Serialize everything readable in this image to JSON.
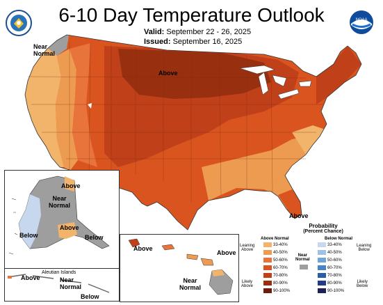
{
  "header": {
    "title": "6-10 Day Temperature Outlook",
    "valid_label": "Valid:",
    "valid_value": "September 22 - 26, 2025",
    "issued_label": "Issued:",
    "issued_value": "September 16, 2025"
  },
  "logos": {
    "left_seal": "department-of-commerce-seal",
    "right_logo": "noaa-logo",
    "right_logo_text": "NOAA"
  },
  "map_labels": {
    "near_normal_nw": "Near\nNormal",
    "above_central": "Above",
    "above_florida": "Above"
  },
  "alaska": {
    "above": "Above",
    "near_normal": "Near\nNormal",
    "above_south": "Above",
    "below_west": "Below",
    "below_southeast": "Below"
  },
  "aleutians": {
    "title": "Aleutian Islands",
    "above": "Above",
    "near_normal": "Near\nNormal",
    "below": "Below"
  },
  "hawaii": {
    "above_west": "Above",
    "above_east": "Above",
    "near_normal": "Near\nNormal"
  },
  "legend": {
    "title": "Probability",
    "subtitle": "(Percent Chance)",
    "above_header": "Above Normal",
    "below_header": "Below Normal",
    "near_normal": "Near\nNormal",
    "leaning_above": "Leaning\nAbove",
    "likely_above": "Likely\nAbove",
    "leaning_below": "Leaning\nBelow",
    "likely_below": "Likely\nBelow",
    "above_bins": [
      {
        "label": "33-40%",
        "color": "#f2b36b"
      },
      {
        "label": "40-50%",
        "color": "#ee9b52"
      },
      {
        "label": "50-60%",
        "color": "#e8743b"
      },
      {
        "label": "60-70%",
        "color": "#d9541f"
      },
      {
        "label": "70-80%",
        "color": "#c0401a"
      },
      {
        "label": "80-90%",
        "color": "#98300f"
      },
      {
        "label": "90-100%",
        "color": "#6e1d0a"
      }
    ],
    "below_bins": [
      {
        "label": "33-40%",
        "color": "#c6d7ee"
      },
      {
        "label": "40-50%",
        "color": "#9fc1e4"
      },
      {
        "label": "50-60%",
        "color": "#6fa4d6"
      },
      {
        "label": "60-70%",
        "color": "#4584c6"
      },
      {
        "label": "70-80%",
        "color": "#2b5da6"
      },
      {
        "label": "80-90%",
        "color": "#253a86"
      },
      {
        "label": "90-100%",
        "color": "#1f205a"
      }
    ],
    "near_normal_color": "#9e9e9e"
  }
}
